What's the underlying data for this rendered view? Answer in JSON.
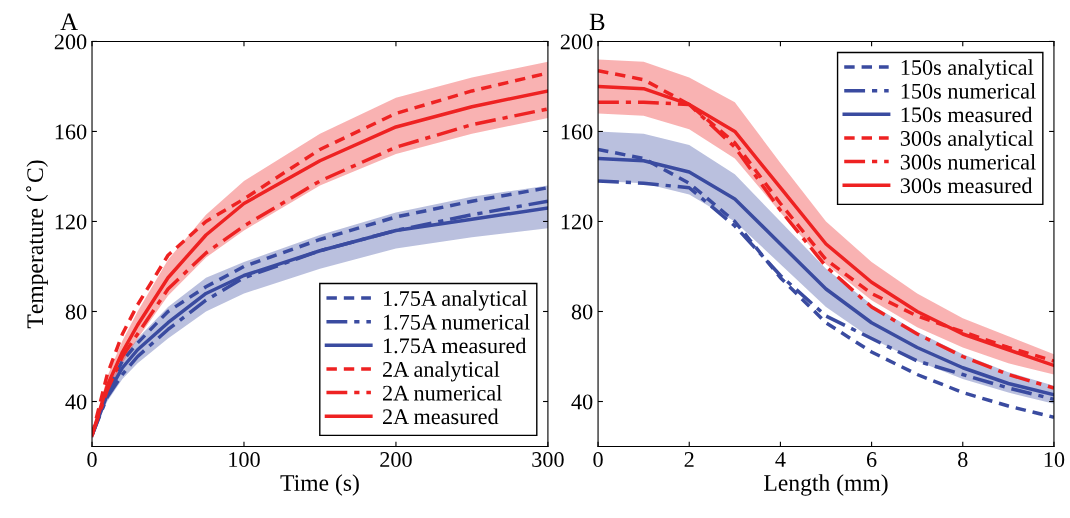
{
  "chart_data": [
    {
      "type": "line",
      "title": "A",
      "xlabel": "Time (s)",
      "ylabel": "Temperature ($^{∘}$C)",
      "xlim": [
        0,
        300
      ],
      "ylim": [
        20,
        200
      ],
      "xticks": [
        0,
        100,
        200,
        300
      ],
      "yticks": [
        40,
        80,
        120,
        160,
        200
      ],
      "grid": false,
      "legend": "bottom right",
      "marker": "none",
      "x": [
        0,
        10,
        20,
        30,
        50,
        75,
        100,
        150,
        200,
        250,
        300
      ],
      "series": [
        {
          "name": "1.75A analytical",
          "color": "#3a4ba0",
          "line_style": "dashed",
          "values": [
            25,
            45,
            58,
            66,
            80,
            91,
            100,
            112,
            122,
            129,
            135
          ]
        },
        {
          "name": "1.75A numerical",
          "color": "#3a4ba0",
          "line_style": "dashdot",
          "values": [
            25,
            42,
            52,
            60,
            72,
            85,
            95,
            107,
            116,
            123,
            129
          ]
        },
        {
          "name": "1.75A measured",
          "color": "#3a4ba0",
          "line_style": "solid",
          "values": [
            25,
            43,
            55,
            63,
            75,
            88,
            96,
            107,
            116,
            121,
            126
          ],
          "lower": [
            25,
            40,
            50,
            57,
            68,
            80,
            88,
            99,
            108,
            113,
            117
          ],
          "upper": [
            25,
            46,
            59,
            68,
            82,
            95,
            102,
            114,
            124,
            131,
            136
          ]
        },
        {
          "name": "2A analytical",
          "color": "#ee2222",
          "line_style": "dashed",
          "values": [
            25,
            52,
            70,
            83,
            105,
            120,
            130,
            152,
            168,
            178,
            186
          ]
        },
        {
          "name": "2A numerical",
          "color": "#ee2222",
          "line_style": "dashdot",
          "values": [
            25,
            45,
            60,
            70,
            90,
            106,
            118,
            138,
            153,
            163,
            170
          ]
        },
        {
          "name": "2A measured",
          "color": "#ee2222",
          "line_style": "solid",
          "values": [
            25,
            47,
            62,
            74,
            95,
            114,
            128,
            147,
            162,
            171,
            178
          ],
          "lower": [
            25,
            43,
            57,
            68,
            87,
            104,
            116,
            136,
            150,
            159,
            166
          ],
          "upper": [
            25,
            51,
            67,
            80,
            103,
            123,
            138,
            159,
            175,
            184,
            191
          ]
        }
      ]
    },
    {
      "type": "line",
      "title": "B",
      "xlabel": "Length (mm)",
      "xlim": [
        0,
        10
      ],
      "ylim": [
        20,
        200
      ],
      "xticks": [
        0,
        2,
        4,
        6,
        8,
        10
      ],
      "yticks": [
        40,
        80,
        120,
        160,
        200
      ],
      "grid": false,
      "legend": "top right",
      "marker": "none",
      "x": [
        0,
        1,
        2,
        3,
        4,
        5,
        6,
        7,
        8,
        9,
        10
      ],
      "series": [
        {
          "name": "150s analytical",
          "color": "#3a4ba0",
          "line_style": "dashed",
          "values": [
            152,
            148,
            137,
            120,
            95,
            75,
            62,
            52,
            44,
            38,
            33
          ]
        },
        {
          "name": "150s numerical",
          "color": "#3a4ba0",
          "line_style": "dashdot",
          "values": [
            138,
            137,
            135,
            118,
            96,
            78,
            68,
            58,
            52,
            46,
            41
          ]
        },
        {
          "name": "150s measured",
          "color": "#3a4ba0",
          "line_style": "solid",
          "values": [
            148,
            147,
            142,
            130,
            110,
            90,
            75,
            64,
            55,
            48,
            43
          ],
          "lower": [
            138,
            137,
            132,
            120,
            101,
            82,
            68,
            58,
            50,
            44,
            39
          ],
          "upper": [
            160,
            159,
            154,
            141,
            120,
            99,
            83,
            71,
            61,
            53,
            47
          ]
        },
        {
          "name": "300s analytical",
          "color": "#ee2222",
          "line_style": "dashed",
          "values": [
            187,
            183,
            172,
            155,
            128,
            103,
            88,
            78,
            71,
            64,
            58
          ]
        },
        {
          "name": "300s numerical",
          "color": "#ee2222",
          "line_style": "dashdot",
          "values": [
            173,
            173,
            172,
            153,
            125,
            100,
            82,
            70,
            60,
            52,
            46
          ]
        },
        {
          "name": "300s measured",
          "color": "#ee2222",
          "line_style": "solid",
          "values": [
            180,
            179,
            172,
            160,
            135,
            110,
            93,
            80,
            70,
            63,
            56
          ],
          "lower": [
            168,
            167,
            161,
            148,
            124,
            101,
            85,
            73,
            64,
            57,
            52
          ],
          "upper": [
            192,
            191,
            184,
            173,
            146,
            120,
            102,
            88,
            77,
            69,
            61
          ]
        }
      ]
    }
  ]
}
